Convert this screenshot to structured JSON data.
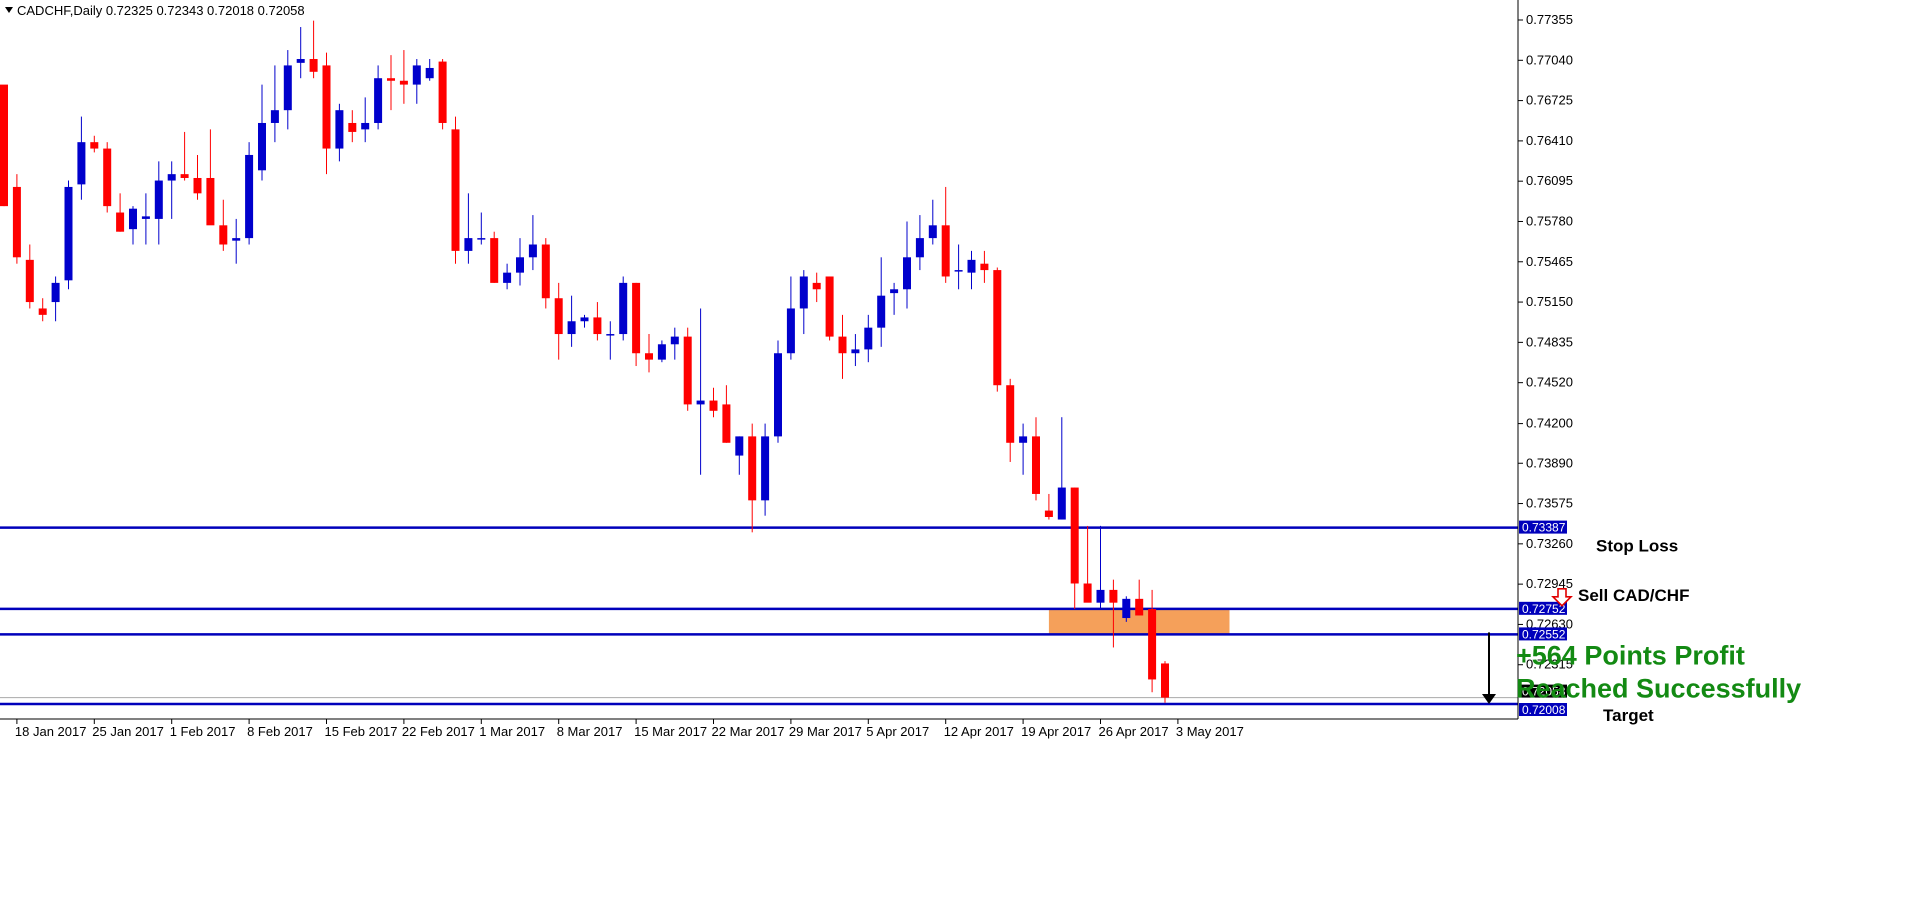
{
  "header": {
    "symbol_info": "CADCHF,Daily  0.72325 0.72343 0.72018 0.72058"
  },
  "colors": {
    "bull": "#0000cc",
    "bear": "#ff0000",
    "wick": "#000000",
    "level_line": "#0000bb",
    "zone": "#f5a05a",
    "profit_text": "#138a13",
    "grid_line": "#aaaaaa"
  },
  "chart_data": {
    "type": "candlestick",
    "title": "CADCHF,Daily  0.72325 0.72343 0.72018 0.72058",
    "y_ticks": [
      0.77355,
      0.7704,
      0.76725,
      0.7641,
      0.76095,
      0.7578,
      0.75465,
      0.7515,
      0.74835,
      0.7452,
      0.742,
      0.7389,
      0.73575,
      0.7326,
      0.72945,
      0.7263,
      0.72315
    ],
    "y_tick_labels": [
      "0.77355",
      "0.77040",
      "0.76725",
      "0.76410",
      "0.76095",
      "0.75780",
      "0.75465",
      "0.75150",
      "0.74835",
      "0.74520",
      "0.74200",
      "0.73890",
      "0.73575",
      "0.73260",
      "0.72945",
      "0.72630",
      "0.72315"
    ],
    "ylim": [
      0.7187,
      0.7753
    ],
    "x_ticks": [
      {
        "index": 1,
        "label": "18 Jan 2017"
      },
      {
        "index": 7,
        "label": "25 Jan 2017"
      },
      {
        "index": 13,
        "label": "1 Feb 2017"
      },
      {
        "index": 19,
        "label": "8 Feb 2017"
      },
      {
        "index": 25,
        "label": "15 Feb 2017"
      },
      {
        "index": 31,
        "label": "22 Feb 2017"
      },
      {
        "index": 37,
        "label": "1 Mar 2017"
      },
      {
        "index": 43,
        "label": "8 Mar 2017"
      },
      {
        "index": 49,
        "label": "15 Mar 2017"
      },
      {
        "index": 55,
        "label": "22 Mar 2017"
      },
      {
        "index": 61,
        "label": "29 Mar 2017"
      },
      {
        "index": 67,
        "label": "5 Apr 2017"
      },
      {
        "index": 73,
        "label": "12 Apr 2017"
      },
      {
        "index": 79,
        "label": "19 Apr 2017"
      },
      {
        "index": 85,
        "label": "26 Apr 2017"
      },
      {
        "index": 91,
        "label": "3 May 2017"
      }
    ],
    "candles": [
      [
        0.7685,
        0.768,
        0.759,
        0.759
      ],
      [
        0.7605,
        0.7615,
        0.7545,
        0.755
      ],
      [
        0.7548,
        0.756,
        0.751,
        0.7515
      ],
      [
        0.751,
        0.7518,
        0.75,
        0.7505
      ],
      [
        0.7515,
        0.7535,
        0.75,
        0.753
      ],
      [
        0.7532,
        0.761,
        0.7525,
        0.7605
      ],
      [
        0.7607,
        0.766,
        0.7595,
        0.764
      ],
      [
        0.764,
        0.7645,
        0.7632,
        0.7635
      ],
      [
        0.7635,
        0.764,
        0.7585,
        0.759
      ],
      [
        0.7585,
        0.76,
        0.757,
        0.757
      ],
      [
        0.7572,
        0.759,
        0.756,
        0.7588
      ],
      [
        0.758,
        0.76,
        0.756,
        0.7582
      ],
      [
        0.758,
        0.7625,
        0.756,
        0.761
      ],
      [
        0.761,
        0.7625,
        0.758,
        0.7615
      ],
      [
        0.7615,
        0.7648,
        0.761,
        0.7612
      ],
      [
        0.7612,
        0.763,
        0.7595,
        0.76
      ],
      [
        0.7612,
        0.765,
        0.758,
        0.7575
      ],
      [
        0.7575,
        0.7595,
        0.7555,
        0.756
      ],
      [
        0.7563,
        0.758,
        0.7545,
        0.7565
      ],
      [
        0.7565,
        0.764,
        0.756,
        0.763
      ],
      [
        0.7618,
        0.7685,
        0.761,
        0.7655
      ],
      [
        0.7655,
        0.77,
        0.764,
        0.7665
      ],
      [
        0.7665,
        0.7712,
        0.765,
        0.77
      ],
      [
        0.7702,
        0.773,
        0.769,
        0.7705
      ],
      [
        0.7705,
        0.7735,
        0.769,
        0.7695
      ],
      [
        0.77,
        0.771,
        0.7615,
        0.7635
      ],
      [
        0.7635,
        0.767,
        0.7625,
        0.7665
      ],
      [
        0.7655,
        0.7665,
        0.764,
        0.7648
      ],
      [
        0.765,
        0.7675,
        0.764,
        0.7655
      ],
      [
        0.7655,
        0.77,
        0.765,
        0.769
      ],
      [
        0.769,
        0.7708,
        0.7665,
        0.7688
      ],
      [
        0.7688,
        0.7712,
        0.767,
        0.7685
      ],
      [
        0.7685,
        0.7705,
        0.767,
        0.77
      ],
      [
        0.769,
        0.7705,
        0.7688,
        0.7698
      ],
      [
        0.7703,
        0.7705,
        0.765,
        0.7655
      ],
      [
        0.765,
        0.766,
        0.7545,
        0.7555
      ],
      [
        0.7555,
        0.76,
        0.7545,
        0.7565
      ],
      [
        0.7565,
        0.7585,
        0.756,
        0.7565
      ],
      [
        0.7565,
        0.757,
        0.753,
        0.753
      ],
      [
        0.753,
        0.7545,
        0.7525,
        0.7538
      ],
      [
        0.7538,
        0.7565,
        0.7528,
        0.755
      ],
      [
        0.755,
        0.7583,
        0.754,
        0.756
      ],
      [
        0.756,
        0.7565,
        0.751,
        0.7518
      ],
      [
        0.7518,
        0.753,
        0.747,
        0.749
      ],
      [
        0.749,
        0.752,
        0.748,
        0.75
      ],
      [
        0.75,
        0.7505,
        0.7495,
        0.7503
      ],
      [
        0.7503,
        0.7515,
        0.7485,
        0.749
      ],
      [
        0.749,
        0.75,
        0.747,
        0.749
      ],
      [
        0.749,
        0.7535,
        0.7485,
        0.753
      ],
      [
        0.753,
        0.753,
        0.7465,
        0.7475
      ],
      [
        0.7475,
        0.749,
        0.746,
        0.747
      ],
      [
        0.747,
        0.7485,
        0.7468,
        0.7482
      ],
      [
        0.7482,
        0.7495,
        0.747,
        0.7488
      ],
      [
        0.7488,
        0.7495,
        0.743,
        0.7435
      ],
      [
        0.7435,
        0.751,
        0.738,
        0.7438
      ],
      [
        0.7438,
        0.7448,
        0.7425,
        0.743
      ],
      [
        0.7435,
        0.745,
        0.7405,
        0.7405
      ],
      [
        0.7395,
        0.741,
        0.738,
        0.741
      ],
      [
        0.741,
        0.742,
        0.7335,
        0.736
      ],
      [
        0.736,
        0.742,
        0.7348,
        0.741
      ],
      [
        0.741,
        0.7485,
        0.7405,
        0.7475
      ],
      [
        0.7475,
        0.7535,
        0.747,
        0.751
      ],
      [
        0.751,
        0.754,
        0.749,
        0.7535
      ],
      [
        0.753,
        0.7538,
        0.7515,
        0.7525
      ],
      [
        0.7535,
        0.7535,
        0.7485,
        0.7488
      ],
      [
        0.7488,
        0.7505,
        0.7455,
        0.7475
      ],
      [
        0.7475,
        0.749,
        0.7465,
        0.7478
      ],
      [
        0.7478,
        0.7505,
        0.7468,
        0.7495
      ],
      [
        0.7495,
        0.755,
        0.748,
        0.752
      ],
      [
        0.7522,
        0.753,
        0.7505,
        0.7525
      ],
      [
        0.7525,
        0.7578,
        0.751,
        0.755
      ],
      [
        0.755,
        0.7583,
        0.754,
        0.7565
      ],
      [
        0.7565,
        0.7595,
        0.756,
        0.7575
      ],
      [
        0.7575,
        0.7605,
        0.753,
        0.7535
      ],
      [
        0.754,
        0.756,
        0.7525,
        0.754
      ],
      [
        0.7538,
        0.7555,
        0.7525,
        0.7548
      ],
      [
        0.7545,
        0.7555,
        0.753,
        0.754
      ],
      [
        0.754,
        0.7542,
        0.7445,
        0.745
      ],
      [
        0.745,
        0.7455,
        0.739,
        0.7405
      ],
      [
        0.7405,
        0.742,
        0.738,
        0.741
      ],
      [
        0.741,
        0.7425,
        0.736,
        0.7365
      ],
      [
        0.7352,
        0.7365,
        0.7345,
        0.7347
      ],
      [
        0.7345,
        0.7425,
        0.7345,
        0.737
      ],
      [
        0.737,
        0.737,
        0.7275,
        0.7295
      ],
      [
        0.7295,
        0.734,
        0.7285,
        0.728
      ],
      [
        0.728,
        0.734,
        0.7275,
        0.729
      ],
      [
        0.729,
        0.7298,
        0.7245,
        0.728
      ],
      [
        0.7268,
        0.7285,
        0.7265,
        0.7283
      ],
      [
        0.7283,
        0.7298,
        0.727,
        0.727
      ],
      [
        0.7275,
        0.729,
        0.721,
        0.722
      ],
      [
        0.72325,
        0.72343,
        0.72018,
        0.72058
      ]
    ],
    "levels": [
      {
        "name": "stop-loss",
        "value": 0.73387,
        "label": "0.73387"
      },
      {
        "name": "entry",
        "value": 0.72752,
        "label": "0.72752"
      },
      {
        "name": "zone-low",
        "value": 0.72552,
        "label": "0.72552"
      },
      {
        "name": "target",
        "value": 0.72008,
        "label": "0.72008"
      }
    ],
    "current_price": {
      "value": 0.72058,
      "label": "0.72058"
    },
    "zone": {
      "from_index": 81,
      "to_index": 95,
      "top": 0.72752,
      "bottom": 0.72552
    },
    "annotations": {
      "stop_loss": "Stop Loss",
      "sell": "Sell CAD/CHF",
      "profit_line1": "+564 Points Profit",
      "profit_line2": "Reached Successfully",
      "target": "Target"
    }
  }
}
